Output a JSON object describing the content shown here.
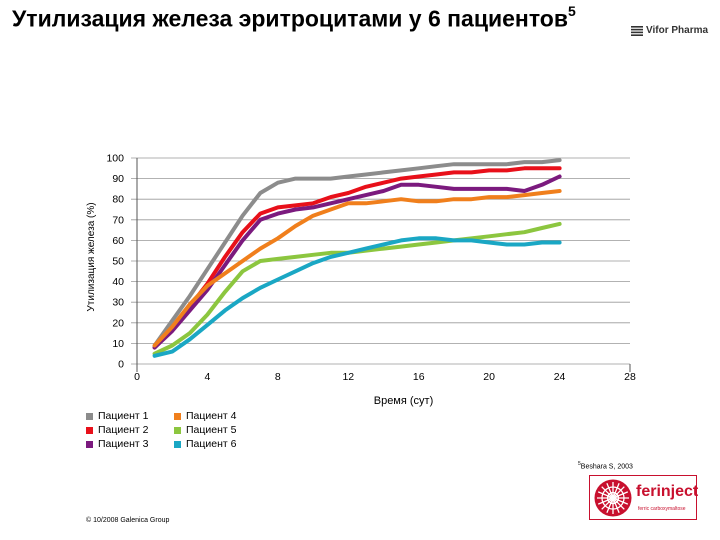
{
  "header": {
    "title": "Утилизация железа эритроцитами у 6 пациентов",
    "title_sup": "5",
    "brand": "Vifor Pharma"
  },
  "chart_data": {
    "type": "line",
    "xlabel": "Время (сут)",
    "ylabel": "Утилизация железа (%)",
    "xlim": [
      0,
      28
    ],
    "ylim": [
      0,
      100
    ],
    "xticks": [
      0,
      4,
      8,
      12,
      16,
      20,
      24,
      28
    ],
    "yticks": [
      0,
      10,
      20,
      30,
      40,
      50,
      60,
      70,
      80,
      90,
      100
    ],
    "grid": "horizontal",
    "legend_position": "bottom-left",
    "series": [
      {
        "name": "Пациент 1",
        "color": "#8c8c8c",
        "x": [
          1,
          2,
          3,
          4,
          5,
          6,
          7,
          8,
          9,
          10,
          11,
          12,
          13,
          14,
          15,
          16,
          17,
          18,
          19,
          20,
          21,
          22,
          23,
          24
        ],
        "y": [
          9,
          21,
          33,
          46,
          59,
          72,
          83,
          88,
          90,
          90,
          90,
          91,
          92,
          93,
          94,
          95,
          96,
          97,
          97,
          97,
          97,
          98,
          98,
          99
        ]
      },
      {
        "name": "Пациент 2",
        "color": "#e8101a",
        "x": [
          1,
          2,
          3,
          4,
          5,
          6,
          7,
          8,
          9,
          10,
          11,
          12,
          13,
          14,
          15,
          16,
          17,
          18,
          19,
          20,
          21,
          22,
          23,
          24
        ],
        "y": [
          8,
          17,
          28,
          39,
          52,
          64,
          73,
          76,
          77,
          78,
          81,
          83,
          86,
          88,
          90,
          91,
          92,
          93,
          93,
          94,
          94,
          95,
          95,
          95
        ]
      },
      {
        "name": "Пациент 3",
        "color": "#7b1a7e",
        "x": [
          1,
          2,
          3,
          4,
          5,
          6,
          7,
          8,
          9,
          10,
          11,
          12,
          13,
          14,
          15,
          16,
          17,
          18,
          19,
          20,
          21,
          22,
          23,
          24
        ],
        "y": [
          8,
          16,
          26,
          36,
          48,
          60,
          70,
          73,
          75,
          76,
          78,
          80,
          82,
          84,
          87,
          87,
          86,
          85,
          85,
          85,
          85,
          84,
          87,
          91
        ]
      },
      {
        "name": "Пациент 4",
        "color": "#f07f1c",
        "x": [
          1,
          2,
          3,
          4,
          5,
          6,
          7,
          8,
          9,
          10,
          11,
          12,
          13,
          14,
          15,
          16,
          17,
          18,
          19,
          20,
          21,
          22,
          23,
          24
        ],
        "y": [
          9,
          18,
          29,
          38,
          44,
          50,
          56,
          61,
          67,
          72,
          75,
          78,
          78,
          79,
          80,
          79,
          79,
          80,
          80,
          81,
          81,
          82,
          83,
          84
        ]
      },
      {
        "name": "Пациент 5",
        "color": "#8cc63f",
        "x": [
          1,
          2,
          3,
          4,
          5,
          6,
          7,
          8,
          9,
          10,
          11,
          12,
          13,
          14,
          15,
          16,
          17,
          18,
          19,
          20,
          21,
          22,
          23,
          24
        ],
        "y": [
          5,
          9,
          15,
          24,
          35,
          45,
          50,
          51,
          52,
          53,
          54,
          54,
          55,
          56,
          57,
          58,
          59,
          60,
          61,
          62,
          63,
          64,
          66,
          68
        ]
      },
      {
        "name": "Пациент 6",
        "color": "#1aa7c4",
        "x": [
          1,
          2,
          3,
          4,
          5,
          6,
          7,
          8,
          9,
          10,
          11,
          12,
          13,
          14,
          15,
          16,
          17,
          18,
          19,
          20,
          21,
          22,
          23,
          24
        ],
        "y": [
          4,
          6,
          12,
          19,
          26,
          32,
          37,
          41,
          45,
          49,
          52,
          54,
          56,
          58,
          60,
          61,
          61,
          60,
          60,
          59,
          58,
          58,
          59,
          59
        ]
      }
    ]
  },
  "reference": {
    "sup": "5",
    "text": "Beshara S, 2003"
  },
  "copyright": "© 10/2008 Galenica Group",
  "logo": {
    "name": "ferinject",
    "tagline": "ferric carboxymaltose"
  },
  "colors": {
    "logo_red": "#c8102e",
    "grid": "#999999"
  }
}
